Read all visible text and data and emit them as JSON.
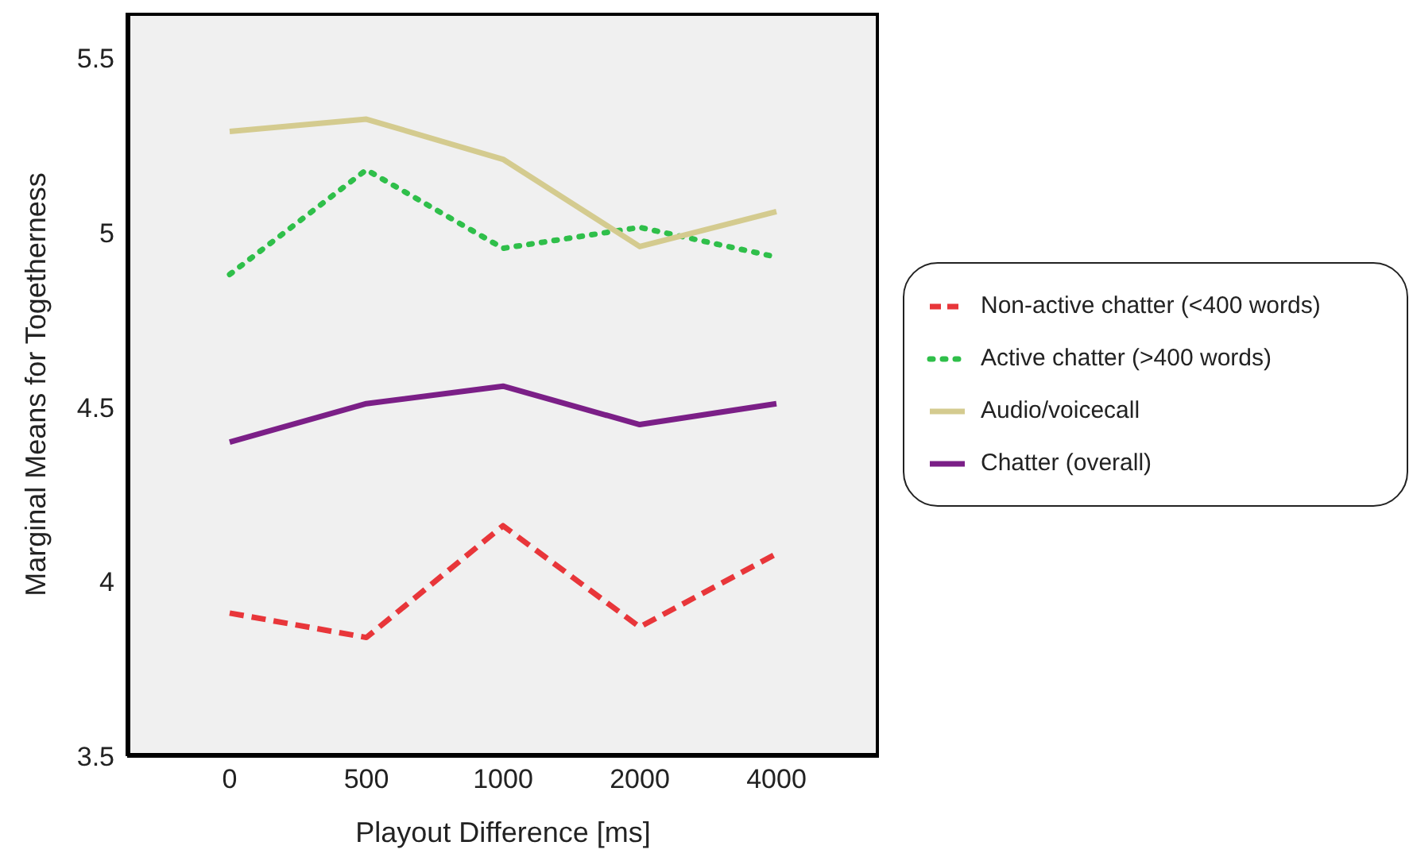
{
  "chart_data": {
    "type": "line",
    "xlabel": "Playout Difference [ms]",
    "ylabel": "Marginal Means for Togetherness",
    "categories": [
      "0",
      "500",
      "1000",
      "2000",
      "4000"
    ],
    "ylim": [
      3.5,
      5.63
    ],
    "yticks": [
      3.5,
      4,
      4.5,
      5,
      5.5
    ],
    "grid": false,
    "legend": "right",
    "marker": "none",
    "series": [
      {
        "name": "Non-active chatter (<400 words)",
        "color": "#e8363a",
        "line_style": "dashed",
        "values": [
          3.91,
          3.84,
          4.16,
          3.87,
          4.08
        ]
      },
      {
        "name": "Active chatter (>400 words)",
        "color": "#2fbf4a",
        "line_style": "dotted",
        "values": [
          4.88,
          5.18,
          4.955,
          5.015,
          4.93
        ]
      },
      {
        "name": "Audio/voicecall",
        "color": "#d4cb8f",
        "line_style": "solid",
        "values": [
          5.29,
          5.325,
          5.21,
          4.96,
          5.06
        ]
      },
      {
        "name": "Chatter (overall)",
        "color": "#7b1f87",
        "line_style": "solid",
        "values": [
          4.4,
          4.51,
          4.56,
          4.45,
          4.51
        ]
      }
    ]
  }
}
